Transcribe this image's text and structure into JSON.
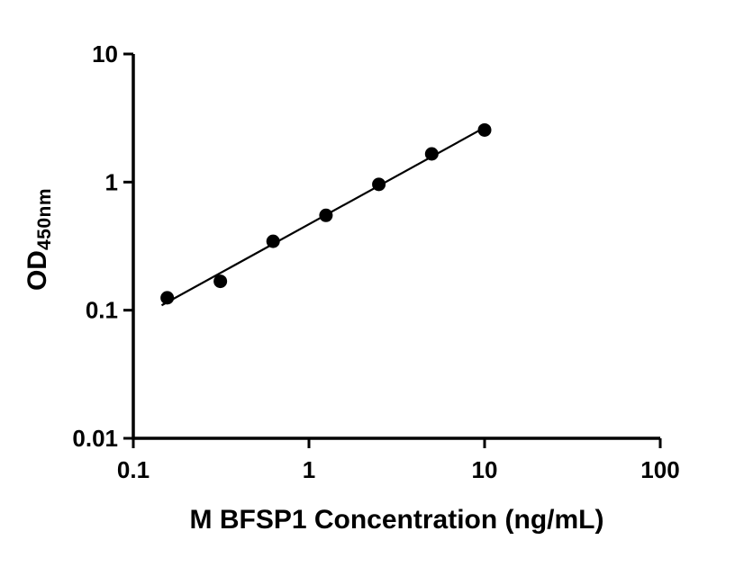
{
  "chart_data": {
    "type": "scatter",
    "title": "",
    "xlabel": "M BFSP1 Concentration (ng/mL)",
    "ylabel_main": "OD",
    "ylabel_sub": "450nm",
    "x_scale": "log",
    "y_scale": "log",
    "xlim": [
      0.1,
      100
    ],
    "ylim": [
      0.01,
      10
    ],
    "x_ticks": [
      0.1,
      1,
      10,
      100
    ],
    "x_tick_labels": [
      "0.1",
      "1",
      "10",
      "100"
    ],
    "y_ticks": [
      0.01,
      0.1,
      1,
      10
    ],
    "y_tick_labels": [
      "0.01",
      "0.1",
      "1",
      "10"
    ],
    "points": [
      {
        "x": 0.156,
        "y": 0.125
      },
      {
        "x": 0.313,
        "y": 0.168
      },
      {
        "x": 0.625,
        "y": 0.345
      },
      {
        "x": 1.25,
        "y": 0.55
      },
      {
        "x": 2.5,
        "y": 0.96
      },
      {
        "x": 5,
        "y": 1.66
      },
      {
        "x": 10,
        "y": 2.55
      }
    ],
    "trend_line": {
      "x_start": 0.145,
      "x_end": 10.0,
      "fit": "linear-loglog"
    },
    "marker_color": "#000000",
    "marker_radius": 7.5,
    "line_color": "#000000",
    "axis_color": "#000000",
    "background_color": "#ffffff",
    "grid": false,
    "legend": null
  }
}
